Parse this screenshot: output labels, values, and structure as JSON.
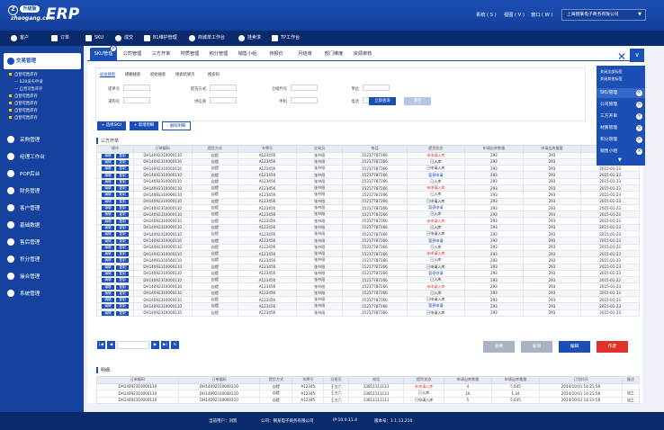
{
  "logo": {
    "brand": "升级版",
    "sub": "zhaogang.com",
    "erp": "ERP"
  },
  "topmenu": {
    "system": "系统 ( S )",
    "view": "视图 ( V )",
    "window": "窗口 ( W )",
    "company": "上海钢某电子商务有限公司"
  },
  "nav": [
    "客户",
    "订单",
    "SKU",
    "成交",
    "B1维护管理",
    "商城单工作台",
    "挂卖求",
    "TP工作台"
  ],
  "sidebar": {
    "head": "交易管理",
    "subs": [
      "自营可售库存",
      "B2B发布申请",
      "自营可售库存",
      "自营可售库存",
      "自营可售库存",
      "自营可售库存",
      "自营可售库存"
    ],
    "modules": [
      "采购管理",
      "经理工作台",
      "POP后台",
      "财务管理",
      "客户管理",
      "基础数据",
      "售后管理",
      "积分管理",
      "操合管理",
      "系统管理"
    ]
  },
  "tabs": [
    "SKU管理",
    "公司管理",
    "三方开单",
    "材质管理",
    "积分管理",
    "销售小组",
    "待报价",
    "月结单",
    "部门维度",
    "资源审核"
  ],
  "search": {
    "tabs": [
      "标准搜索",
      "模糊搜索",
      "初始搜索",
      "搜索结果页",
      "搜索码"
    ],
    "labels": [
      "提单号",
      "提货方式",
      "仓储代号",
      "单位",
      "采购号",
      "供应商",
      "手机",
      "电话"
    ],
    "search_btn": "立即查询",
    "reset_btn": "清空"
  },
  "actions": {
    "add_sku": "+ 选择SKU",
    "add_detail": "+ 新增明细",
    "del_detail": "- 删除明细"
  },
  "section1": "三方开单",
  "grid_headers": [
    "操作",
    "订单编码",
    "提货方式",
    "车牌号",
    "交易员",
    "电话",
    "提货状态",
    "申请出库数量",
    "申请出库重量",
    "订货时间"
  ],
  "op_labels": {
    "edit": "编辑",
    "copy": "复制"
  },
  "grid_rows": [
    {
      "code": "DH14092310000110",
      "way": "自提",
      "plate": "A123456",
      "trader": "张书阳",
      "phone": "15217787266",
      "status": "未申请入库",
      "cls": "s-red",
      "qty": "293",
      "wt": "293",
      "date": "2015-01-23"
    },
    {
      "code": "DH14092310000110",
      "way": "自提",
      "plate": "A123456",
      "trader": "张书阳",
      "phone": "15217787266",
      "status": "已入库",
      "cls": "",
      "qty": "293",
      "wt": "293",
      "date": "2015-01-23"
    },
    {
      "code": "DH14092310000110",
      "way": "自提",
      "plate": "A123456",
      "trader": "张书阳",
      "phone": "15217787266",
      "status": "已申请入库",
      "cls": "",
      "qty": "293",
      "wt": "293",
      "date": "2015-01-23"
    },
    {
      "code": "DH14092310000110",
      "way": "自提",
      "plate": "A123456",
      "trader": "张书阳",
      "phone": "15217787266",
      "status": "暂停申请",
      "cls": "s-blue",
      "qty": "293",
      "wt": "293",
      "date": "2015-01-23"
    },
    {
      "code": "DH14092310000110",
      "way": "自提",
      "plate": "A123456",
      "trader": "张书阳",
      "phone": "15217787266",
      "status": "已入库",
      "cls": "",
      "qty": "293",
      "wt": "293",
      "date": "2015-01-23"
    },
    {
      "code": "DH14092310000110",
      "way": "自提",
      "plate": "A123456",
      "trader": "张书阳",
      "phone": "15217787266",
      "status": "未申请入库",
      "cls": "s-red",
      "qty": "293",
      "wt": "293",
      "date": "2015-01-23"
    },
    {
      "code": "DH14092310000110",
      "way": "自提",
      "plate": "A123456",
      "trader": "张书阳",
      "phone": "15217787266",
      "status": "已入库",
      "cls": "",
      "qty": "293",
      "wt": "293",
      "date": "2015-01-23"
    },
    {
      "code": "DH14092310000110",
      "way": "自提",
      "plate": "A123456",
      "trader": "张书阳",
      "phone": "15217787266",
      "status": "已申请入库",
      "cls": "",
      "qty": "293",
      "wt": "293",
      "date": "2015-01-23"
    },
    {
      "code": "DH14092310000110",
      "way": "自提",
      "plate": "A123456",
      "trader": "张书阳",
      "phone": "15217787266",
      "status": "暂停申请",
      "cls": "s-blue",
      "qty": "293",
      "wt": "293",
      "date": "2015-01-23"
    },
    {
      "code": "DH14092310000110",
      "way": "自提",
      "plate": "A123456",
      "trader": "张书阳",
      "phone": "15217787266",
      "status": "已入库",
      "cls": "",
      "qty": "293",
      "wt": "293",
      "date": "2015-01-23"
    },
    {
      "code": "DH14092310000110",
      "way": "自提",
      "plate": "A123456",
      "trader": "张书阳",
      "phone": "15217787266",
      "status": "未申请入库",
      "cls": "s-red",
      "qty": "293",
      "wt": "293",
      "date": "2015-01-23"
    },
    {
      "code": "DH14092310000110",
      "way": "自提",
      "plate": "A123456",
      "trader": "张书阳",
      "phone": "15217787266",
      "status": "已入库",
      "cls": "",
      "qty": "293",
      "wt": "293",
      "date": "2015-01-23"
    },
    {
      "code": "DH14092310000110",
      "way": "自提",
      "plate": "A123456",
      "trader": "张书阳",
      "phone": "15217787266",
      "status": "已申请入库",
      "cls": "",
      "qty": "293",
      "wt": "293",
      "date": "2015-01-23"
    },
    {
      "code": "DH14092310000110",
      "way": "自提",
      "plate": "A123456",
      "trader": "张书阳",
      "phone": "15217787266",
      "status": "暂停申请",
      "cls": "s-blue",
      "qty": "293",
      "wt": "293",
      "date": "2015-01-23"
    },
    {
      "code": "DH14092310000110",
      "way": "自提",
      "plate": "A123456",
      "trader": "张书阳",
      "phone": "15217787266",
      "status": "已入库",
      "cls": "",
      "qty": "293",
      "wt": "293",
      "date": "2015-01-23"
    },
    {
      "code": "DH14092310000110",
      "way": "自提",
      "plate": "A123456",
      "trader": "张书阳",
      "phone": "15217787266",
      "status": "未申请入库",
      "cls": "s-red",
      "qty": "293",
      "wt": "293",
      "date": "2015-01-23"
    },
    {
      "code": "DH14092310000110",
      "way": "自提",
      "plate": "A123456",
      "trader": "张书阳",
      "phone": "15217787266",
      "status": "已入库",
      "cls": "",
      "qty": "293",
      "wt": "293",
      "date": "2015-01-23"
    },
    {
      "code": "DH14092310000110",
      "way": "自提",
      "plate": "A123456",
      "trader": "张书阳",
      "phone": "15217787266",
      "status": "已申请入库",
      "cls": "",
      "qty": "293",
      "wt": "293",
      "date": "2015-01-23"
    },
    {
      "code": "DH14092310000110",
      "way": "自提",
      "plate": "A123456",
      "trader": "张书阳",
      "phone": "15217787266",
      "status": "暂停申请",
      "cls": "s-blue",
      "qty": "293",
      "wt": "293",
      "date": "2015-01-23"
    },
    {
      "code": "DH14092310000110",
      "way": "自提",
      "plate": "A123456",
      "trader": "张书阳",
      "phone": "15217787266",
      "status": "已入库",
      "cls": "",
      "qty": "293",
      "wt": "293",
      "date": "2015-01-23"
    },
    {
      "code": "DH14092310000110",
      "way": "自提",
      "plate": "A123456",
      "trader": "张书阳",
      "phone": "15217787266",
      "status": "未申请入库",
      "cls": "s-red",
      "qty": "293",
      "wt": "293",
      "date": "2015-01-23"
    },
    {
      "code": "DH14092310000110",
      "way": "自提",
      "plate": "A123456",
      "trader": "张书阳",
      "phone": "15217787266",
      "status": "已入库",
      "cls": "",
      "qty": "293",
      "wt": "293",
      "date": "2015-01-23"
    },
    {
      "code": "DH14092310000110",
      "way": "自提",
      "plate": "A123456",
      "trader": "张书阳",
      "phone": "15217787266",
      "status": "已申请入库",
      "cls": "",
      "qty": "293",
      "wt": "293",
      "date": "2015-01-23"
    },
    {
      "code": "DH14092310000110",
      "way": "自提",
      "plate": "A123456",
      "trader": "张书阳",
      "phone": "15217787266",
      "status": "暂停申请",
      "cls": "s-blue",
      "qty": "293",
      "wt": "293",
      "date": "2015-01-23"
    },
    {
      "code": "DH14092310000110",
      "way": "自提",
      "plate": "A123456",
      "trader": "张书阳",
      "phone": "15217787266",
      "status": "已申请入库",
      "cls": "",
      "qty": "293",
      "wt": "293",
      "date": "2015-01-23"
    }
  ],
  "bottom_buttons": {
    "view": "查看",
    "add": "新增",
    "edit": "编辑",
    "void": "作废"
  },
  "section2": "明细",
  "grid2_headers": [
    "订单编码",
    "订单编码",
    "提货方式",
    "车牌号",
    "交易员",
    "电话",
    "提货状态",
    "申请出库数量",
    "申请出库重量",
    "订货时间",
    "备注"
  ],
  "grid2_rows": [
    {
      "a": "DH14092310000110",
      "b": "DH14092310000110",
      "way": "自提",
      "plate": "A12345",
      "trader": "王五六",
      "phone": "13811111111",
      "status": "未申请入库",
      "cls": "s-red",
      "qty": "4",
      "wt": "5.645",
      "date": "2014/10/11 14:21:58",
      "note": ""
    },
    {
      "a": "DH14092310000110",
      "b": "DH14092310000110",
      "way": "自提",
      "plate": "A12345",
      "trader": "王五六",
      "phone": "13811111111",
      "status": "已入库",
      "cls": "",
      "qty": "10",
      "wt": "1.34",
      "date": "2014/10/11 14:21:58",
      "note": "加工"
    },
    {
      "a": "DH14092310000110",
      "b": "DH14092310000110",
      "way": "自提",
      "plate": "A12345",
      "trader": "王五六",
      "phone": "13811111111",
      "status": "已申请入库",
      "cls": "",
      "qty": "5",
      "wt": "5.645",
      "date": "2014/10/11 14:21:58",
      "note": "加工"
    }
  ],
  "dropdown": {
    "top": [
      "关闭全部标签",
      "关闭其他标签"
    ],
    "items": [
      "SKU管理",
      "公司管理",
      "三方开单",
      "材质管理",
      "积分管理",
      "销售小组"
    ]
  },
  "footer": {
    "user": "当前用户：刘凯",
    "company": "公司：钢某电子商务有限公司",
    "ip": "IP:10.0.11.4",
    "version": "版本号：1.1.13.210"
  },
  "colors": {
    "primary": "#1b4fb6",
    "nav": "#0a2a6e",
    "danger": "#e0322b",
    "gray_btn": "#a9b3c4"
  }
}
